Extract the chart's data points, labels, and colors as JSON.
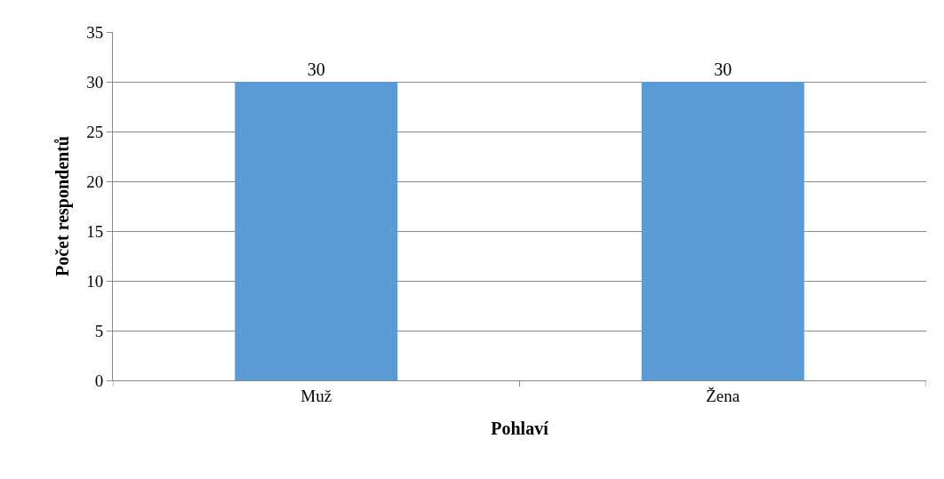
{
  "chart_data": {
    "type": "bar",
    "xlabel": "Pohlaví",
    "ylabel": "Počet respondentů",
    "categories": [
      "Muž",
      "Žena"
    ],
    "values": [
      30,
      30
    ],
    "color": "#5b9bd5",
    "ylim": [
      0,
      35
    ],
    "yticks": [
      0,
      5,
      10,
      15,
      20,
      25,
      30,
      35
    ],
    "grid": "y",
    "data_labels": true
  }
}
